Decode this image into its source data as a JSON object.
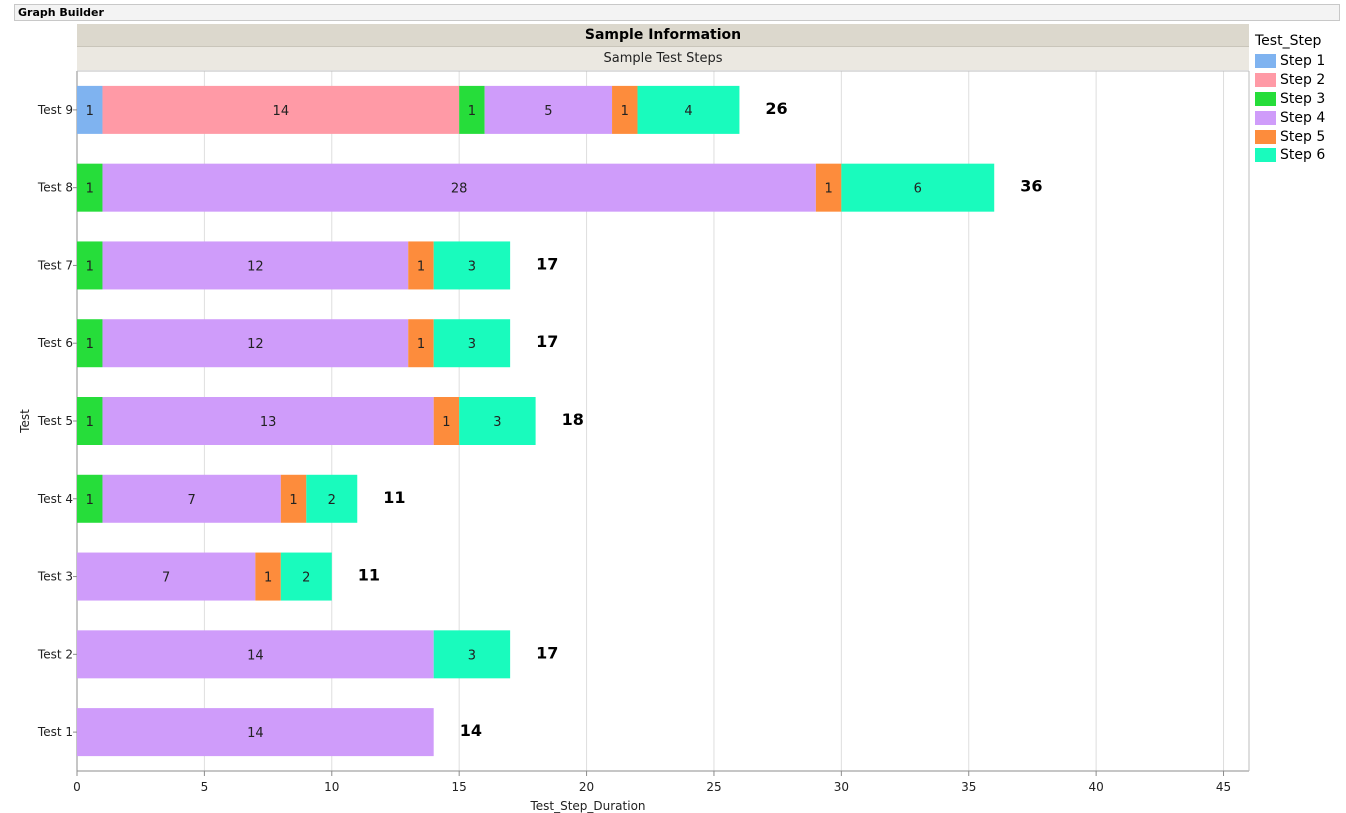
{
  "app": {
    "title": "Graph Builder"
  },
  "chart_data": {
    "type": "bar",
    "orientation": "horizontal",
    "stacked": true,
    "title": "Sample Information",
    "subtitle": "Sample Test Steps",
    "xlabel": "Test_Step_Duration",
    "ylabel": "Test",
    "xlim": [
      0,
      46
    ],
    "xticks": [
      0,
      5,
      10,
      15,
      20,
      25,
      30,
      35,
      40,
      45
    ],
    "grid": true,
    "legend_title": "Test_Step",
    "legend_position": "right",
    "categories": [
      "Test 1",
      "Test 2",
      "Test 3",
      "Test 4",
      "Test 5",
      "Test 6",
      "Test 7",
      "Test 8",
      "Test 9"
    ],
    "series": [
      {
        "name": "Step 1",
        "color": "#7fb3f0",
        "values": [
          0,
          0,
          0,
          0,
          0,
          0,
          0,
          0,
          1
        ]
      },
      {
        "name": "Step 2",
        "color": "#ff9aa6",
        "values": [
          0,
          0,
          0,
          0,
          0,
          0,
          0,
          0,
          14
        ]
      },
      {
        "name": "Step 3",
        "color": "#26dd3a",
        "values": [
          0,
          0,
          0,
          1,
          1,
          1,
          1,
          1,
          1
        ]
      },
      {
        "name": "Step 4",
        "color": "#cf9cfa",
        "values": [
          14,
          14,
          7,
          7,
          13,
          12,
          12,
          28,
          5
        ]
      },
      {
        "name": "Step 5",
        "color": "#fd8c3c",
        "values": [
          0,
          0,
          1,
          1,
          1,
          1,
          1,
          1,
          1
        ]
      },
      {
        "name": "Step 6",
        "color": "#19fbbd",
        "values": [
          0,
          3,
          2,
          2,
          3,
          3,
          3,
          6,
          4
        ]
      }
    ],
    "totals": [
      14,
      17,
      11,
      11,
      18,
      17,
      17,
      36,
      26
    ]
  }
}
